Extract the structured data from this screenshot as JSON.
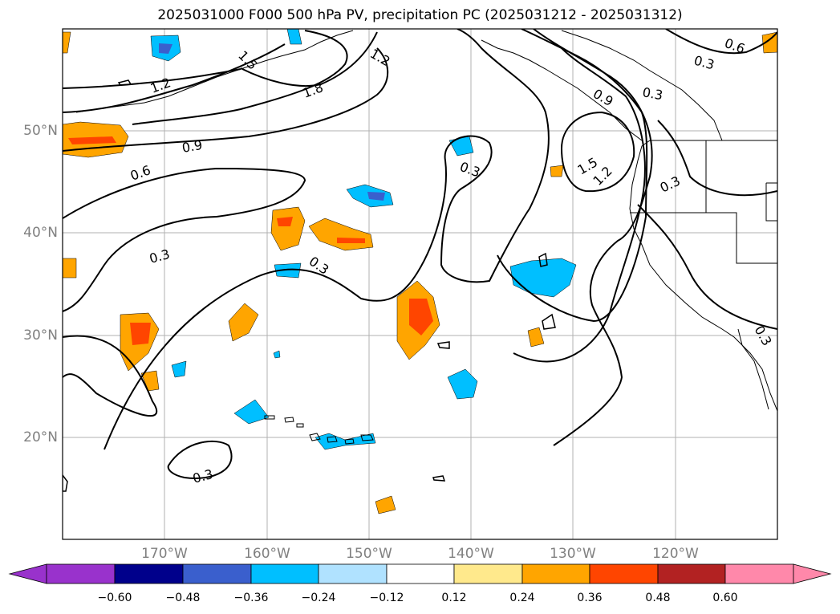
{
  "title": "2025031000 F000 500 hPa PV, precipitation PC (2025031212 - 2025031312)",
  "lat_labels": [
    "50°N",
    "40°N",
    "30°N",
    "20°N"
  ],
  "lon_labels": [
    "170°W",
    "160°W",
    "150°W",
    "140°W",
    "130°W",
    "120°W"
  ],
  "colorbar": {
    "ticks": [
      "−0.60",
      "−0.48",
      "−0.36",
      "−0.24",
      "−0.12",
      "0.12",
      "0.24",
      "0.36",
      "0.48",
      "0.60"
    ],
    "colors": [
      "#9932cc",
      "#00008b",
      "#3a5fcd",
      "#00bfff",
      "#b0e2ff",
      "#ffffff",
      "#ffe98c",
      "#ffa500",
      "#ff4500",
      "#b22222",
      "#ff88aa"
    ]
  },
  "contour_labels": [
    "1.5",
    "1.2",
    "1.2",
    "1.8",
    "0.9",
    "0.6",
    "0.3",
    "0.3",
    "0.3",
    "0.3",
    "0.6",
    "0.3",
    "0.3",
    "0.9",
    "1.5",
    "1.2",
    "0.3",
    "0.3"
  ],
  "colors": {
    "map_frame": "#000000",
    "grid": "#b0b0b0",
    "axis_label": "#808080"
  }
}
